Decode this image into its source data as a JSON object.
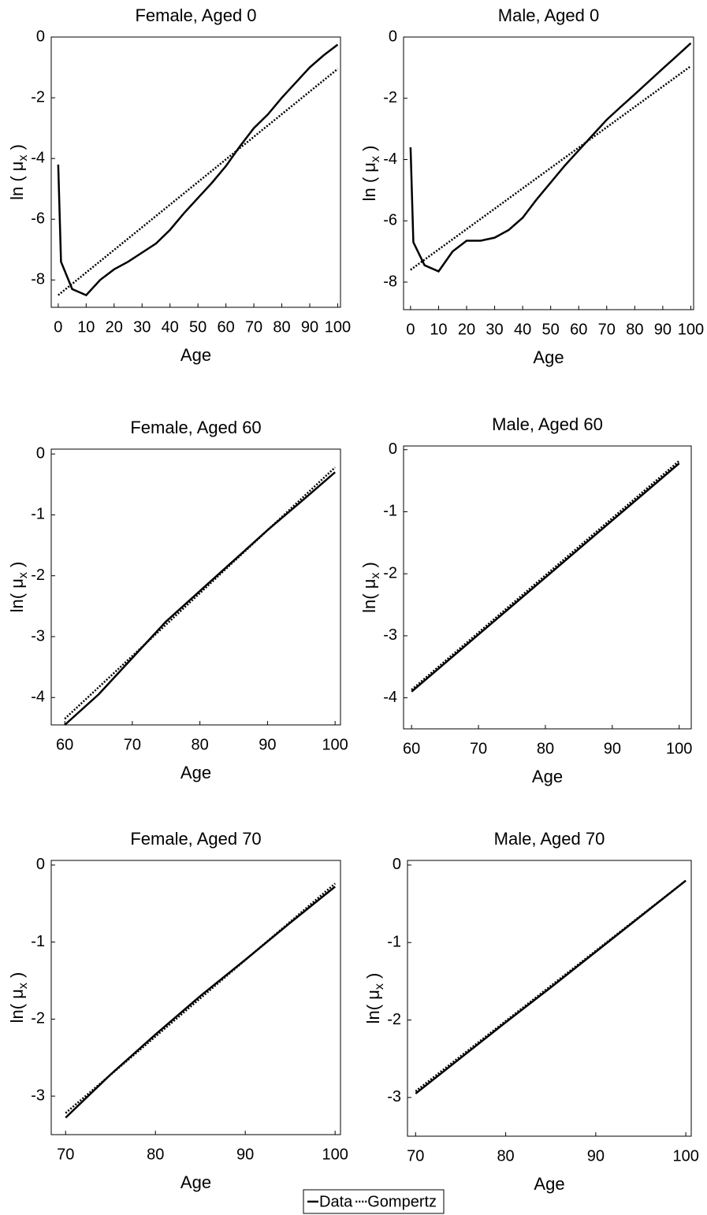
{
  "legend": [
    {
      "name": "Data",
      "dash": "solid"
    },
    {
      "name": "Gompertz",
      "dash": "dotted"
    }
  ],
  "chart_data": [
    {
      "type": "line",
      "title": "Female, Aged 0",
      "xlabel": "Age",
      "ylabel": {
        "main": "ln ( μ",
        "sub": "x",
        "end": " )"
      },
      "xlim": [
        -2.5,
        101
      ],
      "xticks": [
        0,
        10,
        20,
        30,
        40,
        50,
        60,
        70,
        80,
        90,
        100
      ],
      "ylim": [
        -8.9,
        0
      ],
      "yticks": [
        0,
        -2,
        -4,
        -6,
        -8
      ],
      "series": [
        {
          "color": "#000000",
          "x": [
            0,
            1,
            5,
            10,
            15,
            20,
            25,
            30,
            35,
            40,
            45,
            50,
            55,
            60,
            65,
            70,
            75,
            80,
            85,
            90,
            95,
            100
          ],
          "values": [
            -4.2,
            -7.4,
            -8.3,
            -8.5,
            -8.0,
            -7.65,
            -7.4,
            -7.1,
            -6.8,
            -6.35,
            -5.8,
            -5.3,
            -4.8,
            -4.25,
            -3.6,
            -3.0,
            -2.55,
            -2.0,
            -1.5,
            -1.0,
            -0.6,
            -0.25
          ]
        },
        {
          "color": "#000000",
          "x": [
            0,
            100
          ],
          "values": [
            -8.5,
            -1.05
          ]
        }
      ]
    },
    {
      "type": "line",
      "title": "Male, Aged 0",
      "xlabel": "Age",
      "ylabel": {
        "main": "ln ( μ",
        "sub": "x",
        "end": " )"
      },
      "xlim": [
        -2.5,
        101
      ],
      "xticks": [
        0,
        10,
        20,
        30,
        40,
        50,
        60,
        70,
        80,
        90,
        100
      ],
      "ylim": [
        -8.9,
        0
      ],
      "yticks": [
        0,
        -2,
        -4,
        -6,
        -8
      ],
      "series": [
        {
          "color": "#000000",
          "x": [
            0,
            1,
            5,
            10,
            15,
            20,
            25,
            30,
            35,
            40,
            45,
            50,
            55,
            60,
            65,
            70,
            75,
            80,
            85,
            90,
            95,
            100
          ],
          "values": [
            -3.6,
            -6.7,
            -7.45,
            -7.65,
            -7.0,
            -6.65,
            -6.65,
            -6.55,
            -6.3,
            -5.9,
            -5.3,
            -4.75,
            -4.2,
            -3.7,
            -3.2,
            -2.7,
            -2.28,
            -1.87,
            -1.45,
            -1.03,
            -0.62,
            -0.2
          ]
        },
        {
          "color": "#000000",
          "x": [
            0,
            100
          ],
          "values": [
            -7.6,
            -0.95
          ]
        }
      ]
    },
    {
      "type": "line",
      "title": "Female, Aged 60",
      "xlabel": "Age",
      "ylabel": {
        "main": "ln( μ",
        "sub": "x",
        "end": " )"
      },
      "xlim": [
        58,
        100.8
      ],
      "xticks": [
        60,
        70,
        80,
        90,
        100
      ],
      "ylim": [
        -4.45,
        0.08
      ],
      "yticks": [
        0,
        -1,
        -2,
        -3,
        -4
      ],
      "series": [
        {
          "color": "#000000",
          "x": [
            60,
            65,
            70,
            75,
            80,
            85,
            90,
            95,
            100
          ],
          "values": [
            -4.45,
            -3.95,
            -3.35,
            -2.75,
            -2.25,
            -1.75,
            -1.25,
            -0.78,
            -0.3
          ]
        },
        {
          "color": "#000000",
          "x": [
            60,
            100
          ],
          "values": [
            -4.35,
            -0.22
          ]
        }
      ]
    },
    {
      "type": "line",
      "title": "Male, Aged 60",
      "xlabel": "Age",
      "ylabel": {
        "main": "ln( μ",
        "sub": "x",
        "end": " )"
      },
      "xlim": [
        58.8,
        101.8
      ],
      "xticks": [
        60,
        70,
        80,
        90,
        100
      ],
      "ylim": [
        -4.5,
        0.06
      ],
      "yticks": [
        0,
        -1,
        -2,
        -3,
        -4
      ],
      "series": [
        {
          "color": "#000000",
          "x": [
            60,
            65,
            70,
            75,
            80,
            85,
            90,
            95,
            100
          ],
          "values": [
            -3.9,
            -3.44,
            -2.98,
            -2.52,
            -2.06,
            -1.6,
            -1.14,
            -0.68,
            -0.22
          ]
        },
        {
          "color": "#000000",
          "x": [
            60,
            100
          ],
          "values": [
            -3.87,
            -0.18
          ]
        }
      ]
    },
    {
      "type": "line",
      "title": "Female, Aged 70",
      "xlabel": "Age",
      "ylabel": {
        "main": "ln( μ",
        "sub": "x",
        "end": " )"
      },
      "xlim": [
        68.4,
        100.6
      ],
      "xticks": [
        70,
        80,
        90,
        100
      ],
      "ylim": [
        -3.5,
        0.06
      ],
      "yticks": [
        0,
        -1,
        -2,
        -3
      ],
      "series": [
        {
          "color": "#000000",
          "x": [
            70,
            75,
            80,
            85,
            90,
            95,
            100
          ],
          "values": [
            -3.28,
            -2.72,
            -2.2,
            -1.7,
            -1.23,
            -0.75,
            -0.28
          ]
        },
        {
          "color": "#000000",
          "x": [
            70,
            100
          ],
          "values": [
            -3.22,
            -0.24
          ]
        }
      ]
    },
    {
      "type": "line",
      "title": "Male, Aged 70",
      "xlabel": "Age",
      "ylabel": {
        "main": "ln( μ",
        "sub": "x",
        "end": " )"
      },
      "xlim": [
        69.1,
        100.6
      ],
      "xticks": [
        70,
        80,
        90,
        100
      ],
      "ylim": [
        -3.5,
        0.06
      ],
      "yticks": [
        0,
        -1,
        -2,
        -3
      ],
      "series": [
        {
          "color": "#000000",
          "x": [
            70,
            75,
            80,
            85,
            90,
            95,
            100
          ],
          "values": [
            -2.95,
            -2.49,
            -2.03,
            -1.58,
            -1.12,
            -0.66,
            -0.2
          ]
        },
        {
          "color": "#000000",
          "x": [
            70,
            100
          ],
          "values": [
            -2.92,
            -0.2
          ]
        }
      ]
    }
  ]
}
